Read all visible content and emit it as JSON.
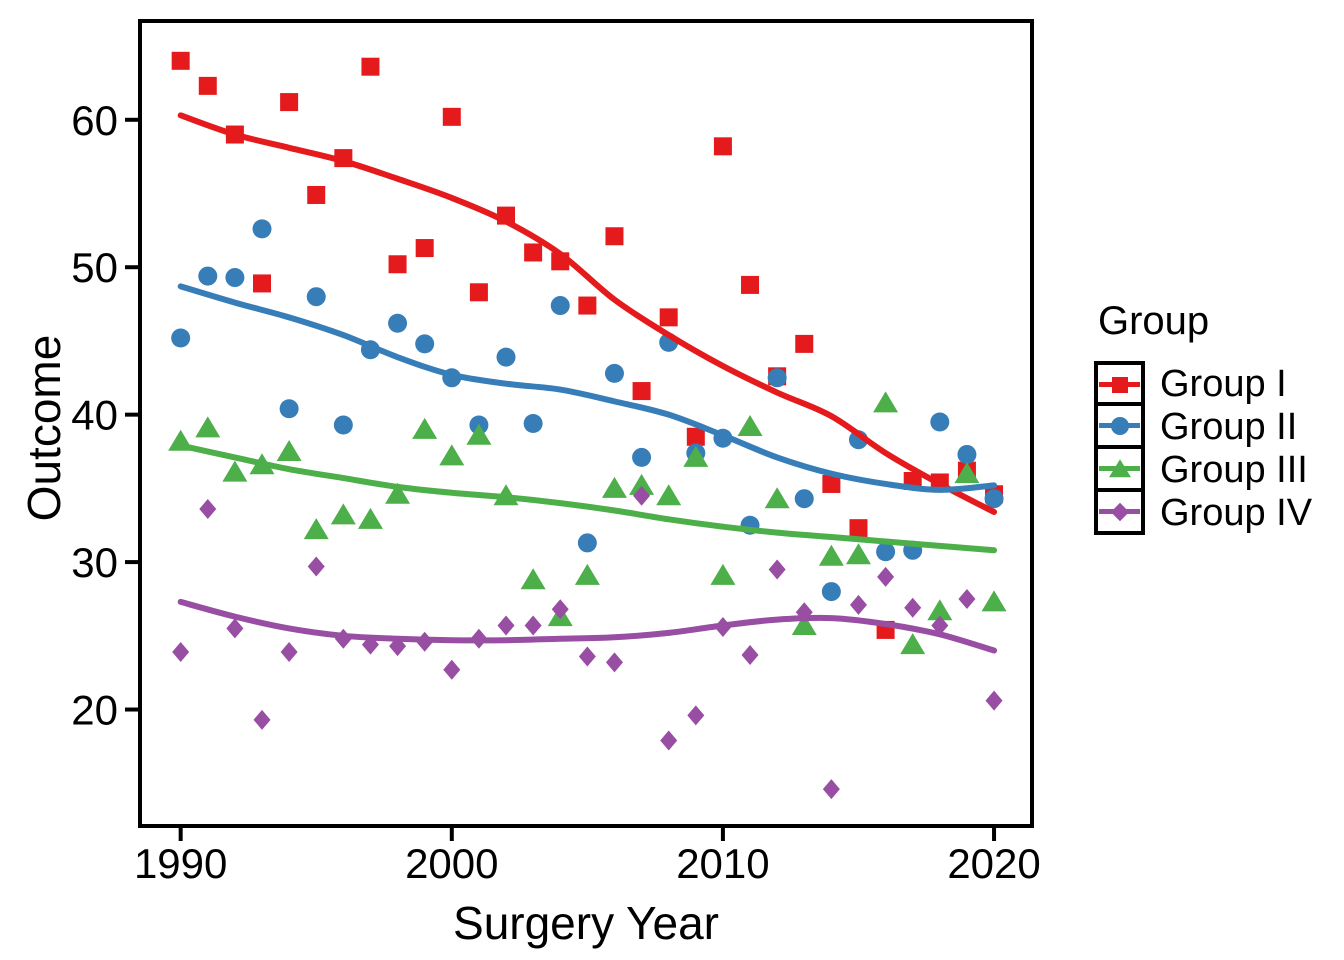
{
  "figure": {
    "xlabel": "Surgery Year",
    "ylabel": "Outcome"
  },
  "legend": {
    "title": "Group",
    "entries": [
      {
        "label": "Group I",
        "color": "#E41A1C",
        "marker": "square"
      },
      {
        "label": "Group II",
        "color": "#377EB8",
        "marker": "circle"
      },
      {
        "label": "Group III",
        "color": "#4DAF4A",
        "marker": "triangle"
      },
      {
        "label": "Group IV",
        "color": "#984EA3",
        "marker": "diamond"
      }
    ]
  },
  "chart_data": {
    "type": "scatter",
    "title": "",
    "xlabel": "Surgery Year",
    "ylabel": "Outcome",
    "xlim": [
      1988.5,
      2021.4
    ],
    "ylim": [
      12.1,
      66.7
    ],
    "x_ticks": [
      1990,
      2000,
      2010,
      2020
    ],
    "y_ticks": [
      20,
      30,
      40,
      50,
      60
    ],
    "grid": false,
    "legend_position": "right",
    "panel_border_color": "#000000",
    "series": [
      {
        "name": "Group I",
        "color": "#E41A1C",
        "marker": "square",
        "points": [
          [
            1990,
            64.0
          ],
          [
            1991,
            62.3
          ],
          [
            1992,
            59.0
          ],
          [
            1993,
            48.9
          ],
          [
            1994,
            61.2
          ],
          [
            1995,
            54.9
          ],
          [
            1996,
            57.4
          ],
          [
            1997,
            63.6
          ],
          [
            1998,
            50.2
          ],
          [
            1999,
            51.3
          ],
          [
            2000,
            60.2
          ],
          [
            2001,
            48.3
          ],
          [
            2002,
            53.5
          ],
          [
            2003,
            51.0
          ],
          [
            2004,
            50.4
          ],
          [
            2005,
            47.4
          ],
          [
            2006,
            52.1
          ],
          [
            2007,
            41.6
          ],
          [
            2008,
            46.6
          ],
          [
            2009,
            38.5
          ],
          [
            2010,
            58.2
          ],
          [
            2011,
            48.8
          ],
          [
            2012,
            42.6
          ],
          [
            2013,
            44.8
          ],
          [
            2014,
            35.3
          ],
          [
            2015,
            32.3
          ],
          [
            2016,
            25.4
          ],
          [
            2017,
            35.5
          ],
          [
            2018,
            35.4
          ],
          [
            2019,
            36.2
          ],
          [
            2020,
            34.6
          ]
        ],
        "trend": [
          [
            1990,
            60.3
          ],
          [
            1992,
            59.0
          ],
          [
            1994,
            58.1
          ],
          [
            1996,
            57.2
          ],
          [
            1998,
            56.0
          ],
          [
            2000,
            54.7
          ],
          [
            2002,
            53.1
          ],
          [
            2004,
            50.9
          ],
          [
            2006,
            47.8
          ],
          [
            2008,
            45.4
          ],
          [
            2010,
            43.3
          ],
          [
            2012,
            41.5
          ],
          [
            2014,
            39.9
          ],
          [
            2016,
            37.4
          ],
          [
            2018,
            35.3
          ],
          [
            2020,
            33.4
          ]
        ]
      },
      {
        "name": "Group II",
        "color": "#377EB8",
        "marker": "circle",
        "points": [
          [
            1990,
            45.2
          ],
          [
            1991,
            49.4
          ],
          [
            1992,
            49.3
          ],
          [
            1993,
            52.6
          ],
          [
            1994,
            40.4
          ],
          [
            1995,
            48.0
          ],
          [
            1996,
            39.3
          ],
          [
            1997,
            44.4
          ],
          [
            1998,
            46.2
          ],
          [
            1999,
            44.8
          ],
          [
            2000,
            42.5
          ],
          [
            2001,
            39.3
          ],
          [
            2002,
            43.9
          ],
          [
            2003,
            39.4
          ],
          [
            2004,
            47.4
          ],
          [
            2005,
            31.3
          ],
          [
            2006,
            42.8
          ],
          [
            2007,
            37.1
          ],
          [
            2008,
            44.9
          ],
          [
            2009,
            37.4
          ],
          [
            2010,
            38.4
          ],
          [
            2011,
            32.5
          ],
          [
            2012,
            42.5
          ],
          [
            2013,
            34.3
          ],
          [
            2014,
            28.0
          ],
          [
            2015,
            38.3
          ],
          [
            2016,
            30.7
          ],
          [
            2017,
            30.8
          ],
          [
            2018,
            39.5
          ],
          [
            2019,
            37.3
          ],
          [
            2020,
            34.3
          ]
        ],
        "trend": [
          [
            1990,
            48.7
          ],
          [
            1992,
            47.6
          ],
          [
            1994,
            46.6
          ],
          [
            1996,
            45.4
          ],
          [
            1998,
            43.9
          ],
          [
            2000,
            42.7
          ],
          [
            2002,
            42.1
          ],
          [
            2004,
            41.7
          ],
          [
            2006,
            40.9
          ],
          [
            2008,
            40.0
          ],
          [
            2010,
            38.6
          ],
          [
            2012,
            37.1
          ],
          [
            2014,
            36.0
          ],
          [
            2016,
            35.3
          ],
          [
            2018,
            34.9
          ],
          [
            2020,
            35.2
          ]
        ]
      },
      {
        "name": "Group III",
        "color": "#4DAF4A",
        "marker": "triangle",
        "points": [
          [
            1990,
            38.2
          ],
          [
            1991,
            39.1
          ],
          [
            1992,
            36.1
          ],
          [
            1993,
            36.6
          ],
          [
            1994,
            37.5
          ],
          [
            1995,
            32.2
          ],
          [
            1996,
            33.2
          ],
          [
            1997,
            32.9
          ],
          [
            1998,
            34.6
          ],
          [
            1999,
            39.0
          ],
          [
            2000,
            37.2
          ],
          [
            2001,
            38.6
          ],
          [
            2002,
            34.5
          ],
          [
            2003,
            28.8
          ],
          [
            2004,
            26.3
          ],
          [
            2005,
            29.1
          ],
          [
            2006,
            35.0
          ],
          [
            2007,
            35.2
          ],
          [
            2008,
            34.5
          ],
          [
            2009,
            37.1
          ],
          [
            2010,
            29.1
          ],
          [
            2011,
            39.2
          ],
          [
            2012,
            34.3
          ],
          [
            2013,
            25.7
          ],
          [
            2014,
            30.4
          ],
          [
            2015,
            30.5
          ],
          [
            2016,
            40.8
          ],
          [
            2017,
            24.4
          ],
          [
            2018,
            26.7
          ],
          [
            2019,
            36.0
          ],
          [
            2020,
            27.3
          ]
        ],
        "trend": [
          [
            1990,
            37.9
          ],
          [
            1992,
            37.1
          ],
          [
            1994,
            36.3
          ],
          [
            1996,
            35.7
          ],
          [
            1998,
            35.1
          ],
          [
            2000,
            34.7
          ],
          [
            2002,
            34.4
          ],
          [
            2004,
            34.0
          ],
          [
            2006,
            33.5
          ],
          [
            2008,
            32.9
          ],
          [
            2010,
            32.4
          ],
          [
            2012,
            32.0
          ],
          [
            2014,
            31.7
          ],
          [
            2016,
            31.4
          ],
          [
            2018,
            31.1
          ],
          [
            2020,
            30.8
          ]
        ]
      },
      {
        "name": "Group IV",
        "color": "#984EA3",
        "marker": "diamond",
        "points": [
          [
            1990,
            23.9
          ],
          [
            1991,
            33.6
          ],
          [
            1992,
            25.5
          ],
          [
            1993,
            19.3
          ],
          [
            1994,
            23.9
          ],
          [
            1995,
            29.7
          ],
          [
            1996,
            24.8
          ],
          [
            1997,
            24.4
          ],
          [
            1998,
            24.3
          ],
          [
            1999,
            24.6
          ],
          [
            2000,
            22.7
          ],
          [
            2001,
            24.8
          ],
          [
            2002,
            25.7
          ],
          [
            2003,
            25.7
          ],
          [
            2004,
            26.8
          ],
          [
            2005,
            23.6
          ],
          [
            2006,
            23.2
          ],
          [
            2007,
            34.5
          ],
          [
            2008,
            17.9
          ],
          [
            2009,
            19.6
          ],
          [
            2010,
            25.6
          ],
          [
            2011,
            23.7
          ],
          [
            2012,
            29.5
          ],
          [
            2013,
            26.6
          ],
          [
            2014,
            14.6
          ],
          [
            2015,
            27.1
          ],
          [
            2016,
            29.0
          ],
          [
            2017,
            26.9
          ],
          [
            2018,
            25.7
          ],
          [
            2019,
            27.5
          ],
          [
            2020,
            20.6
          ]
        ],
        "trend": [
          [
            1990,
            27.3
          ],
          [
            1992,
            26.3
          ],
          [
            1994,
            25.5
          ],
          [
            1996,
            25.0
          ],
          [
            1998,
            24.8
          ],
          [
            2000,
            24.7
          ],
          [
            2002,
            24.7
          ],
          [
            2004,
            24.8
          ],
          [
            2006,
            24.9
          ],
          [
            2008,
            25.2
          ],
          [
            2010,
            25.7
          ],
          [
            2012,
            26.1
          ],
          [
            2014,
            26.2
          ],
          [
            2016,
            25.8
          ],
          [
            2018,
            25.1
          ],
          [
            2020,
            24.0
          ]
        ]
      }
    ]
  }
}
